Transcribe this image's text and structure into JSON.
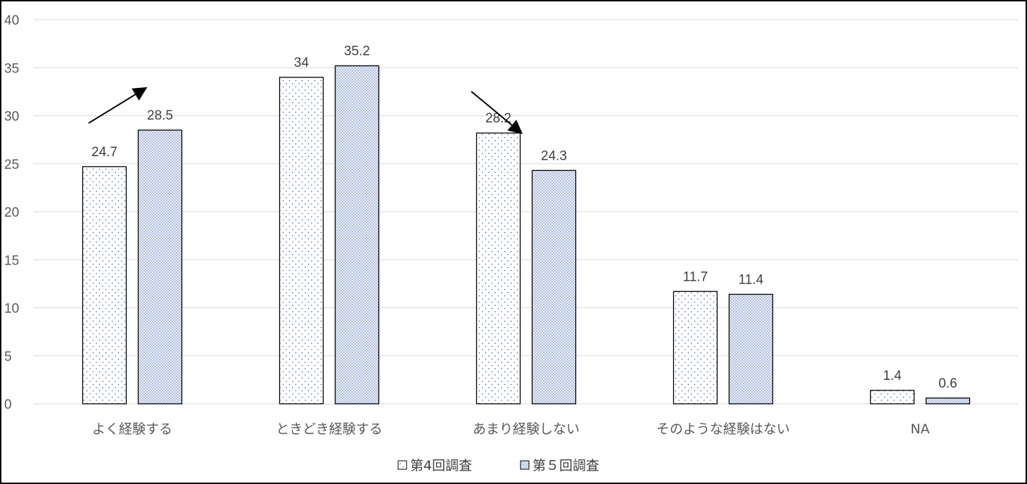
{
  "chart_data": {
    "type": "bar",
    "categories": [
      "よく経験する",
      "ときどき経験する",
      "あまり経験しない",
      "そのような経験はない",
      "NA"
    ],
    "series": [
      {
        "name": "第4回調査",
        "values": [
          24.7,
          34,
          28.2,
          11.7,
          1.4
        ],
        "pattern": "sparse-dots",
        "color": "#ffffff"
      },
      {
        "name": "第５回調査",
        "values": [
          28.5,
          35.2,
          24.3,
          11.4,
          0.6
        ],
        "pattern": "dense-dots",
        "color": "#dce3f2"
      }
    ],
    "data_labels": [
      [
        "24.7",
        "34",
        "28.2",
        "11.7",
        "1.4"
      ],
      [
        "28.5",
        "35.2",
        "24.3",
        "11.4",
        "0.6"
      ]
    ],
    "ylim": [
      0,
      40
    ],
    "yticks": [
      0,
      5,
      10,
      15,
      20,
      25,
      30,
      35,
      40
    ],
    "grid": true,
    "legend_position": "bottom-center",
    "annotations": [
      {
        "type": "arrow",
        "direction": "up",
        "category": "よく経験する"
      },
      {
        "type": "arrow",
        "direction": "down",
        "category": "あまり経験しない"
      }
    ],
    "colors": {
      "gridline": "#d9d9d9",
      "bar_outline": "#000000",
      "series2_fill": "#dce3f2",
      "dot": "#2f4f8f"
    }
  }
}
